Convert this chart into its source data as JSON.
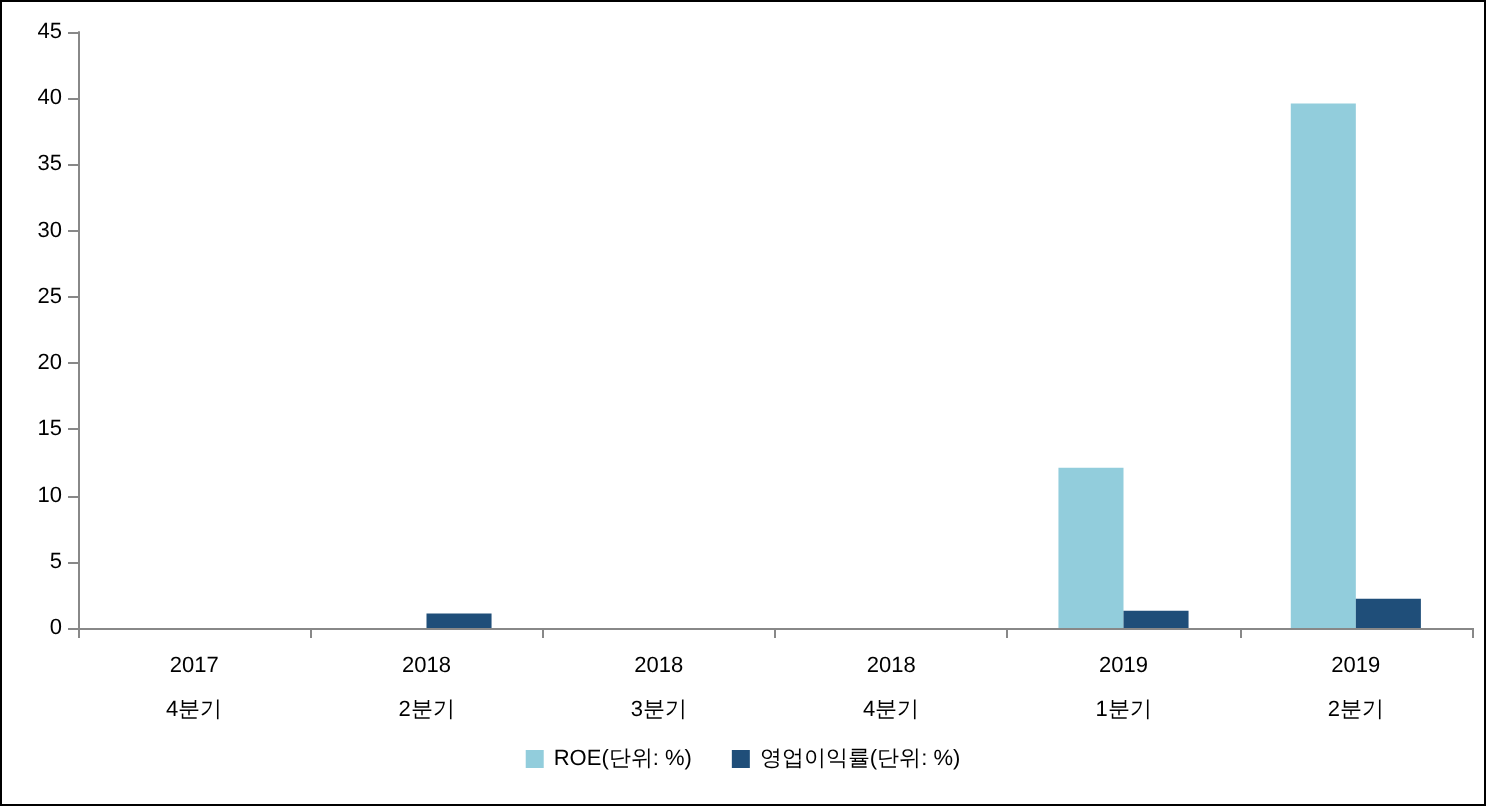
{
  "chart_data": {
    "type": "bar",
    "categories": [
      "2017\n4분기",
      "2018\n2분기",
      "2018\n3분기",
      "2018\n4분기",
      "2019\n1분기",
      "2019\n2분기"
    ],
    "series": [
      {
        "name": "ROE(단위: %)",
        "color": "#92cddc",
        "values": [
          null,
          null,
          null,
          null,
          12.1,
          39.6
        ]
      },
      {
        "name": "영업이익률(단위: %)",
        "color": "#1f4e79",
        "values": [
          null,
          1.1,
          null,
          null,
          1.3,
          2.2
        ]
      }
    ],
    "ylim": [
      0,
      45
    ],
    "yticks": [
      0,
      5,
      10,
      15,
      20,
      25,
      30,
      35,
      40,
      45
    ],
    "grid": false,
    "legend": "bottom"
  }
}
